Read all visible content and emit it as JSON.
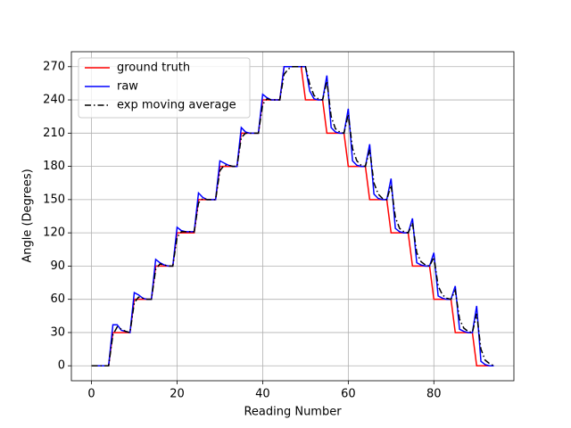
{
  "chart_data": {
    "type": "line",
    "x_label": "Reading Number",
    "y_label": "Angle (Degrees)",
    "x": [
      0,
      1,
      2,
      3,
      4,
      5,
      6,
      7,
      8,
      9,
      10,
      11,
      12,
      13,
      14,
      15,
      16,
      17,
      18,
      19,
      20,
      21,
      22,
      23,
      24,
      25,
      26,
      27,
      28,
      29,
      30,
      31,
      32,
      33,
      34,
      35,
      36,
      37,
      38,
      39,
      40,
      41,
      42,
      43,
      44,
      45,
      46,
      47,
      48,
      49,
      50,
      51,
      52,
      53,
      54,
      55,
      56,
      57,
      58,
      59,
      60,
      61,
      62,
      63,
      64,
      65,
      66,
      67,
      68,
      69,
      70,
      71,
      72,
      73,
      74,
      75,
      76,
      77,
      78,
      79,
      80,
      81,
      82,
      83,
      84,
      85,
      86,
      87,
      88,
      89,
      90,
      91,
      92,
      93,
      94
    ],
    "series": [
      {
        "name": "ground truth",
        "color": "#ff0000",
        "linestyle": "solid",
        "values": [
          0,
          0,
          0,
          0,
          0,
          30,
          30,
          30,
          30,
          30,
          60,
          60,
          60,
          60,
          60,
          90,
          90,
          90,
          90,
          90,
          120,
          120,
          120,
          120,
          120,
          150,
          150,
          150,
          150,
          150,
          180,
          180,
          180,
          180,
          180,
          210,
          210,
          210,
          210,
          210,
          240,
          240,
          240,
          240,
          240,
          270,
          270,
          270,
          270,
          270,
          240,
          240,
          240,
          240,
          240,
          210,
          210,
          210,
          210,
          210,
          180,
          180,
          180,
          180,
          180,
          150,
          150,
          150,
          150,
          150,
          120,
          120,
          120,
          120,
          120,
          90,
          90,
          90,
          90,
          90,
          60,
          60,
          60,
          60,
          60,
          30,
          30,
          30,
          30,
          30,
          0,
          0,
          0,
          0,
          0
        ]
      },
      {
        "name": "raw",
        "color": "#0000ff",
        "linestyle": "solid",
        "values": [
          0,
          0,
          0,
          0,
          0,
          37,
          37,
          32,
          31,
          30,
          66,
          64,
          61,
          60,
          60,
          96,
          93,
          91,
          90,
          90,
          125,
          122,
          121,
          121,
          121,
          156,
          152,
          150,
          150,
          150,
          185,
          183,
          181,
          180,
          180,
          215,
          211,
          210,
          210,
          210,
          245,
          242,
          240,
          240,
          240,
          270,
          270,
          270,
          270,
          270,
          270,
          248,
          241,
          240,
          240,
          262,
          215,
          211,
          210,
          210,
          232,
          185,
          181,
          180,
          180,
          200,
          155,
          151,
          150,
          150,
          169,
          124,
          121,
          120,
          120,
          133,
          93,
          91,
          90,
          90,
          102,
          63,
          61,
          60,
          60,
          72,
          33,
          31,
          30,
          30,
          54,
          4,
          1,
          0,
          0
        ]
      },
      {
        "name": "exp moving average",
        "color": "#000000",
        "linestyle": "dashdot",
        "values": [
          0,
          0,
          0,
          0,
          0,
          28,
          35,
          33,
          31,
          30,
          57,
          62,
          61,
          60,
          60,
          87,
          92,
          91,
          90,
          90,
          116,
          121,
          121,
          121,
          121,
          147,
          151,
          150,
          150,
          150,
          176,
          181,
          181,
          180,
          180,
          206,
          210,
          210,
          210,
          210,
          236,
          241,
          240,
          240,
          240,
          263,
          268,
          270,
          270,
          270,
          270,
          254,
          244,
          241,
          240,
          257,
          225,
          214,
          211,
          210,
          227,
          196,
          185,
          181,
          180,
          195,
          165,
          155,
          151,
          150,
          163,
          134,
          124,
          121,
          120,
          129,
          102,
          94,
          91,
          90,
          98,
          72,
          64,
          61,
          60,
          68,
          42,
          34,
          31,
          30,
          47,
          15,
          5,
          2,
          0
        ]
      }
    ],
    "xlim": [
      -4.7,
      98.7
    ],
    "ylim": [
      -13.5,
      283.5
    ],
    "xticks": [
      0,
      20,
      40,
      60,
      80
    ],
    "yticks": [
      0,
      30,
      60,
      90,
      120,
      150,
      180,
      210,
      240,
      270
    ],
    "grid": true,
    "legend": "upper left"
  }
}
